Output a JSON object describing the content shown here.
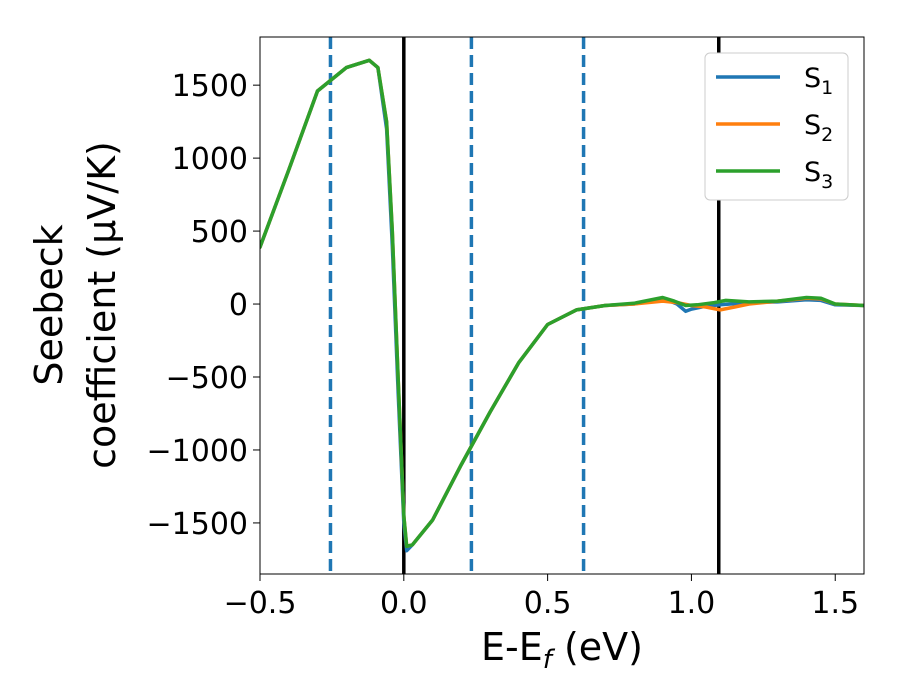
{
  "chart_data": {
    "type": "line",
    "title": "",
    "xlabel": "E-E",
    "xlabel_sub": "f",
    "xlabel_unit": " (eV)",
    "ylabel_line1": "Seebeck",
    "ylabel_line2": "coefficient  (μV/K)",
    "xlim": [
      -0.5,
      1.6
    ],
    "ylim": [
      -1850,
      1830
    ],
    "xticks": [
      -0.5,
      0.0,
      0.5,
      1.0,
      1.5
    ],
    "xtick_labels": [
      "−0.5",
      "0.0",
      "0.5",
      "1.0",
      "1.5"
    ],
    "yticks": [
      -1500,
      -1000,
      -500,
      0,
      500,
      1000,
      1500
    ],
    "ytick_labels": [
      "−1500",
      "−1000",
      "−500",
      "0",
      "500",
      "1000",
      "1500"
    ],
    "grid": false,
    "legend": {
      "placement": "top-right"
    },
    "vlines_solid": {
      "color": "#000000",
      "x": [
        0.0,
        1.095
      ]
    },
    "vlines_dashed": {
      "color": "#1f77b4",
      "x": [
        -0.255,
        0.235,
        0.625
      ]
    },
    "series": [
      {
        "name": "S",
        "sub": "1",
        "color": "#1f77b4",
        "points": [
          [
            -0.5,
            390
          ],
          [
            -0.4,
            920
          ],
          [
            -0.3,
            1460
          ],
          [
            -0.2,
            1620
          ],
          [
            -0.12,
            1670
          ],
          [
            -0.09,
            1620
          ],
          [
            -0.06,
            1200
          ],
          [
            -0.04,
            400
          ],
          [
            -0.02,
            -600
          ],
          [
            0.0,
            -1500
          ],
          [
            0.01,
            -1690
          ],
          [
            0.03,
            -1650
          ],
          [
            0.1,
            -1480
          ],
          [
            0.2,
            -1100
          ],
          [
            0.3,
            -740
          ],
          [
            0.4,
            -400
          ],
          [
            0.5,
            -140
          ],
          [
            0.6,
            -40
          ],
          [
            0.7,
            -10
          ],
          [
            0.8,
            0
          ],
          [
            0.9,
            40
          ],
          [
            0.95,
            0
          ],
          [
            0.98,
            -50
          ],
          [
            1.0,
            -35
          ],
          [
            1.05,
            -15
          ],
          [
            1.1,
            -5
          ],
          [
            1.2,
            10
          ],
          [
            1.3,
            15
          ],
          [
            1.4,
            30
          ],
          [
            1.45,
            25
          ],
          [
            1.5,
            -5
          ],
          [
            1.6,
            -10
          ]
        ]
      },
      {
        "name": "S",
        "sub": "2",
        "color": "#ff7f0e",
        "points": [
          [
            -0.5,
            390
          ],
          [
            -0.4,
            920
          ],
          [
            -0.3,
            1460
          ],
          [
            -0.2,
            1620
          ],
          [
            -0.12,
            1670
          ],
          [
            -0.09,
            1620
          ],
          [
            -0.06,
            1250
          ],
          [
            -0.04,
            500
          ],
          [
            -0.02,
            -500
          ],
          [
            0.0,
            -1450
          ],
          [
            0.01,
            -1660
          ],
          [
            0.03,
            -1650
          ],
          [
            0.1,
            -1480
          ],
          [
            0.2,
            -1100
          ],
          [
            0.3,
            -740
          ],
          [
            0.4,
            -400
          ],
          [
            0.5,
            -140
          ],
          [
            0.6,
            -40
          ],
          [
            0.7,
            -10
          ],
          [
            0.8,
            0
          ],
          [
            0.9,
            20
          ],
          [
            0.95,
            10
          ],
          [
            1.0,
            -10
          ],
          [
            1.05,
            -20
          ],
          [
            1.1,
            -40
          ],
          [
            1.15,
            -20
          ],
          [
            1.2,
            0
          ],
          [
            1.3,
            20
          ],
          [
            1.4,
            40
          ],
          [
            1.45,
            35
          ],
          [
            1.5,
            0
          ],
          [
            1.6,
            -10
          ]
        ]
      },
      {
        "name": "S",
        "sub": "3",
        "color": "#2ca02c",
        "points": [
          [
            -0.5,
            390
          ],
          [
            -0.4,
            920
          ],
          [
            -0.3,
            1460
          ],
          [
            -0.2,
            1620
          ],
          [
            -0.12,
            1670
          ],
          [
            -0.09,
            1620
          ],
          [
            -0.06,
            1250
          ],
          [
            -0.04,
            500
          ],
          [
            -0.02,
            -500
          ],
          [
            0.0,
            -1450
          ],
          [
            0.01,
            -1660
          ],
          [
            0.03,
            -1650
          ],
          [
            0.1,
            -1480
          ],
          [
            0.2,
            -1100
          ],
          [
            0.3,
            -740
          ],
          [
            0.4,
            -400
          ],
          [
            0.5,
            -140
          ],
          [
            0.6,
            -40
          ],
          [
            0.7,
            -10
          ],
          [
            0.8,
            5
          ],
          [
            0.9,
            45
          ],
          [
            0.94,
            20
          ],
          [
            0.98,
            -10
          ],
          [
            1.02,
            -5
          ],
          [
            1.08,
            10
          ],
          [
            1.12,
            25
          ],
          [
            1.2,
            15
          ],
          [
            1.3,
            20
          ],
          [
            1.4,
            45
          ],
          [
            1.45,
            40
          ],
          [
            1.5,
            0
          ],
          [
            1.6,
            -10
          ]
        ]
      }
    ]
  }
}
